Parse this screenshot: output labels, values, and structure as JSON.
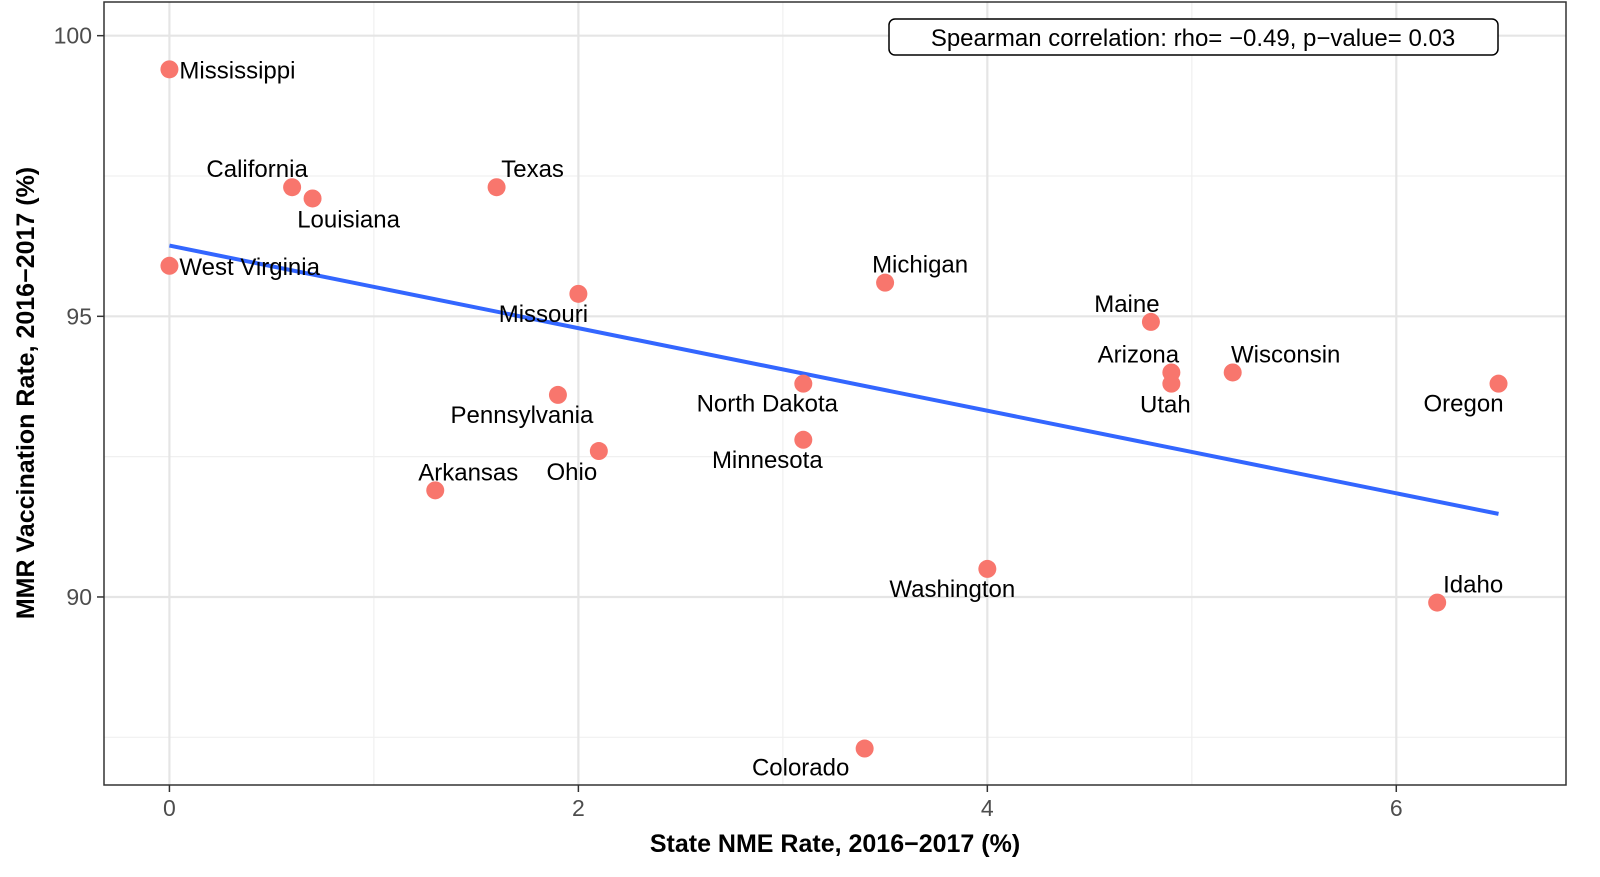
{
  "chart_data": {
    "type": "scatter",
    "title": "",
    "xlabel": "State NME Rate, 2016−2017 (%)",
    "ylabel": "MMR Vaccination Rate, 2016−2017 (%)",
    "xlim": [
      -0.32,
      6.83
    ],
    "ylim": [
      86.65,
      100.6
    ],
    "x_ticks": [
      0,
      2,
      4,
      6
    ],
    "y_ticks": [
      90,
      95,
      100
    ],
    "x_tick_labels": [
      "0",
      "2",
      "4",
      "6"
    ],
    "y_tick_labels": [
      "90",
      "95",
      "100"
    ],
    "grid": true,
    "point_color": "#F8766D",
    "line_color": "#3366FF",
    "annotation": "Spearman correlation: rho= −0.49, p−value= 0.03",
    "trend_line": {
      "x": [
        0,
        6.5
      ],
      "y": [
        96.26,
        91.48
      ]
    },
    "points": [
      {
        "label": "Mississippi",
        "x": 0.0,
        "y": 99.4
      },
      {
        "label": "California",
        "x": 0.6,
        "y": 97.3
      },
      {
        "label": "Louisiana",
        "x": 0.7,
        "y": 97.1
      },
      {
        "label": "Texas",
        "x": 1.6,
        "y": 97.3
      },
      {
        "label": "West Virginia",
        "x": 0.0,
        "y": 95.9
      },
      {
        "label": "Missouri",
        "x": 2.0,
        "y": 95.4
      },
      {
        "label": "Michigan",
        "x": 3.5,
        "y": 95.6
      },
      {
        "label": "Maine",
        "x": 4.8,
        "y": 94.9
      },
      {
        "label": "Arizona",
        "x": 4.9,
        "y": 94.0
      },
      {
        "label": "Utah",
        "x": 4.9,
        "y": 93.8
      },
      {
        "label": "Wisconsin",
        "x": 5.2,
        "y": 94.0
      },
      {
        "label": "Oregon",
        "x": 6.5,
        "y": 93.8
      },
      {
        "label": "Pennsylvania",
        "x": 1.9,
        "y": 93.6
      },
      {
        "label": "North Dakota",
        "x": 3.1,
        "y": 93.8
      },
      {
        "label": "Minnesota",
        "x": 3.1,
        "y": 92.8
      },
      {
        "label": "Ohio",
        "x": 2.1,
        "y": 92.6
      },
      {
        "label": "Arkansas",
        "x": 1.3,
        "y": 91.9
      },
      {
        "label": "Washington",
        "x": 4.0,
        "y": 90.5
      },
      {
        "label": "Idaho",
        "x": 6.2,
        "y": 89.9
      },
      {
        "label": "Colorado",
        "x": 3.4,
        "y": 87.3
      }
    ]
  }
}
